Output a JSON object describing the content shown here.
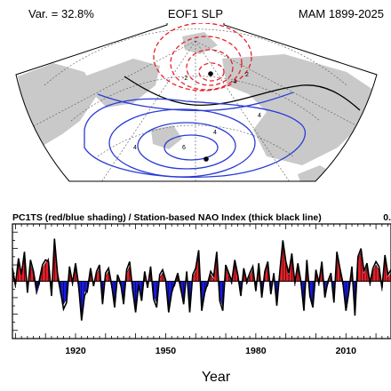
{
  "header": {
    "variance": "Var. = 32.8%",
    "title": "EOF1 SLP",
    "season": "MAM 1899-2025"
  },
  "map": {
    "contour_labels": [
      "-2",
      "-4",
      "2",
      "4",
      "6",
      "4",
      "4"
    ],
    "colors": {
      "negative": "#e8202a",
      "positive": "#2a3bd6",
      "zero": "#000000",
      "land": "#c9c9c9"
    }
  },
  "chart_data": {
    "type": "area",
    "title": "PC1TS (red/blue shading) / Station-based NAO Index (thick black line)",
    "title_cut": "0.",
    "xlabel": "Year",
    "ylabel": "",
    "x_range": [
      1899,
      2025
    ],
    "xticks": [
      "1920",
      "1950",
      "1980",
      "2010"
    ],
    "ylim": [
      -3.5,
      3.5
    ],
    "colors": {
      "positive": "#e8202a",
      "negative": "#1a1ae6",
      "line": "#000000"
    },
    "series": [
      {
        "name": "PC1TS",
        "x": [
          1899,
          1900,
          1901,
          1902,
          1903,
          1904,
          1905,
          1906,
          1907,
          1908,
          1909,
          1910,
          1911,
          1912,
          1913,
          1914,
          1915,
          1916,
          1917,
          1918,
          1919,
          1920,
          1921,
          1922,
          1923,
          1924,
          1925,
          1926,
          1927,
          1928,
          1929,
          1930,
          1931,
          1932,
          1933,
          1934,
          1935,
          1936,
          1937,
          1938,
          1939,
          1940,
          1941,
          1942,
          1943,
          1944,
          1945,
          1946,
          1947,
          1948,
          1949,
          1950,
          1951,
          1952,
          1953,
          1954,
          1955,
          1956,
          1957,
          1958,
          1959,
          1960,
          1961,
          1962,
          1963,
          1964,
          1965,
          1966,
          1967,
          1968,
          1969,
          1970,
          1971,
          1972,
          1973,
          1974,
          1975,
          1976,
          1977,
          1978,
          1979,
          1980,
          1981,
          1982,
          1983,
          1984,
          1985,
          1986,
          1987,
          1988,
          1989,
          1990,
          1991,
          1992,
          1993,
          1994,
          1995,
          1996,
          1997,
          1998,
          1999,
          2000,
          2001,
          2002,
          2003,
          2004,
          2005,
          2006,
          2007,
          2008,
          2009,
          2010,
          2011,
          2012,
          2013,
          2014,
          2015,
          2016,
          2017,
          2018,
          2019,
          2020,
          2021,
          2022,
          2023,
          2024,
          2025
        ],
        "values": [
          0.5,
          -0.4,
          1.2,
          0.6,
          1.5,
          -0.5,
          1.0,
          0.4,
          -0.8,
          -0.2,
          0.8,
          1.1,
          1.4,
          -0.6,
          2.3,
          0.2,
          -0.8,
          -1.4,
          -1.1,
          0.7,
          -0.3,
          0.9,
          -0.5,
          -2.2,
          -0.6,
          -0.7,
          0.5,
          -0.1,
          0.4,
          0.8,
          -1.2,
          0.3,
          0.6,
          -0.4,
          -1.3,
          0.2,
          -0.3,
          -1.1,
          0.5,
          0.9,
          -0.7,
          -1.6,
          -0.4,
          -1.0,
          0.4,
          -0.2,
          0.6,
          -0.9,
          -1.3,
          0.2,
          0.5,
          -0.1,
          -1.6,
          -0.5,
          -0.3,
          0.3,
          -0.6,
          -1.1,
          0.4,
          -1.7,
          0.2,
          0.6,
          1.6,
          -1.5,
          -0.5,
          -0.3,
          0.4,
          0.1,
          1.6,
          -1.0,
          -1.5,
          0.8,
          0.3,
          -0.2,
          1.1,
          0.2,
          -0.7,
          0.6,
          -0.2,
          0.3,
          0.7,
          -0.4,
          0.9,
          -0.8,
          0.4,
          1.0,
          -0.6,
          0.3,
          -1.3,
          0.4,
          2.3,
          1.0,
          0.3,
          1.5,
          -0.3,
          0.9,
          -0.2,
          -1.6,
          1.1,
          -0.7,
          -1.4,
          0.5,
          -0.3,
          1.0,
          -0.8,
          -0.2,
          0.3,
          -1.1,
          1.6,
          0.6,
          -0.3,
          -1.5,
          -0.4,
          0.7,
          -1.9,
          1.3,
          1.8,
          0.4,
          0.9,
          -0.3,
          0.6,
          1.0,
          0.7,
          -0.6,
          1.4,
          0.2,
          0.5
        ]
      },
      {
        "name": "Station-based NAO Index",
        "x": [
          1899,
          1900,
          1901,
          1902,
          1903,
          1904,
          1905,
          1906,
          1907,
          1908,
          1909,
          1910,
          1911,
          1912,
          1913,
          1914,
          1915,
          1916,
          1917,
          1918,
          1919,
          1920,
          1921,
          1922,
          1923,
          1924,
          1925,
          1926,
          1927,
          1928,
          1929,
          1930,
          1931,
          1932,
          1933,
          1934,
          1935,
          1936,
          1937,
          1938,
          1939,
          1940,
          1941,
          1942,
          1943,
          1944,
          1945,
          1946,
          1947,
          1948,
          1949,
          1950,
          1951,
          1952,
          1953,
          1954,
          1955,
          1956,
          1957,
          1958,
          1959,
          1960,
          1961,
          1962,
          1963,
          1964,
          1965,
          1966,
          1967,
          1968,
          1969,
          1970,
          1971,
          1972,
          1973,
          1974,
          1975,
          1976,
          1977,
          1978,
          1979,
          1980,
          1981,
          1982,
          1983,
          1984,
          1985,
          1986,
          1987,
          1988,
          1989,
          1990,
          1991,
          1992,
          1993,
          1994,
          1995,
          1996,
          1997,
          1998,
          1999,
          2000,
          2001,
          2002,
          2003,
          2004,
          2005,
          2006,
          2007,
          2008,
          2009,
          2010,
          2011,
          2012,
          2013,
          2014,
          2015,
          2016,
          2017,
          2018,
          2019,
          2020,
          2021,
          2022,
          2023,
          2024,
          2025
        ],
        "values": [
          0.8,
          -0.2,
          1.4,
          0.4,
          1.8,
          -0.7,
          1.3,
          0.6,
          -0.5,
          0.1,
          1.0,
          1.3,
          1.2,
          -0.9,
          2.6,
          0.5,
          -0.6,
          -1.7,
          -1.3,
          0.9,
          -0.1,
          1.1,
          -0.2,
          -2.4,
          -0.9,
          -0.5,
          0.8,
          -0.3,
          0.6,
          1.0,
          -1.4,
          0.5,
          0.8,
          -0.2,
          -1.6,
          0.4,
          -0.1,
          -1.4,
          0.7,
          1.2,
          -0.5,
          -1.9,
          -0.2,
          -1.2,
          0.6,
          -0.4,
          0.9,
          -1.1,
          -1.6,
          0.4,
          0.7,
          0.1,
          -1.9,
          -0.7,
          -0.1,
          0.5,
          -0.4,
          -1.4,
          0.6,
          -1.9,
          0.4,
          0.8,
          1.9,
          -1.8,
          -0.7,
          -0.1,
          0.6,
          0.3,
          1.8,
          -1.2,
          -1.8,
          1.0,
          0.5,
          0.0,
          1.3,
          0.4,
          -0.9,
          0.8,
          0.0,
          0.5,
          0.9,
          -0.6,
          1.1,
          -1.0,
          0.6,
          1.2,
          -0.8,
          0.5,
          -1.5,
          0.6,
          2.5,
          1.2,
          0.5,
          1.7,
          -0.1,
          1.1,
          0.0,
          -1.8,
          1.3,
          -0.9,
          -1.6,
          0.7,
          -0.1,
          1.2,
          -1.0,
          0.0,
          0.5,
          -1.3,
          1.8,
          0.8,
          -0.1,
          -1.8,
          -0.6,
          0.9,
          -2.1,
          1.5,
          2.0,
          0.6,
          1.1,
          -0.1,
          0.8,
          1.2,
          0.9,
          -0.4,
          1.6,
          0.4,
          0.7
        ]
      }
    ]
  }
}
